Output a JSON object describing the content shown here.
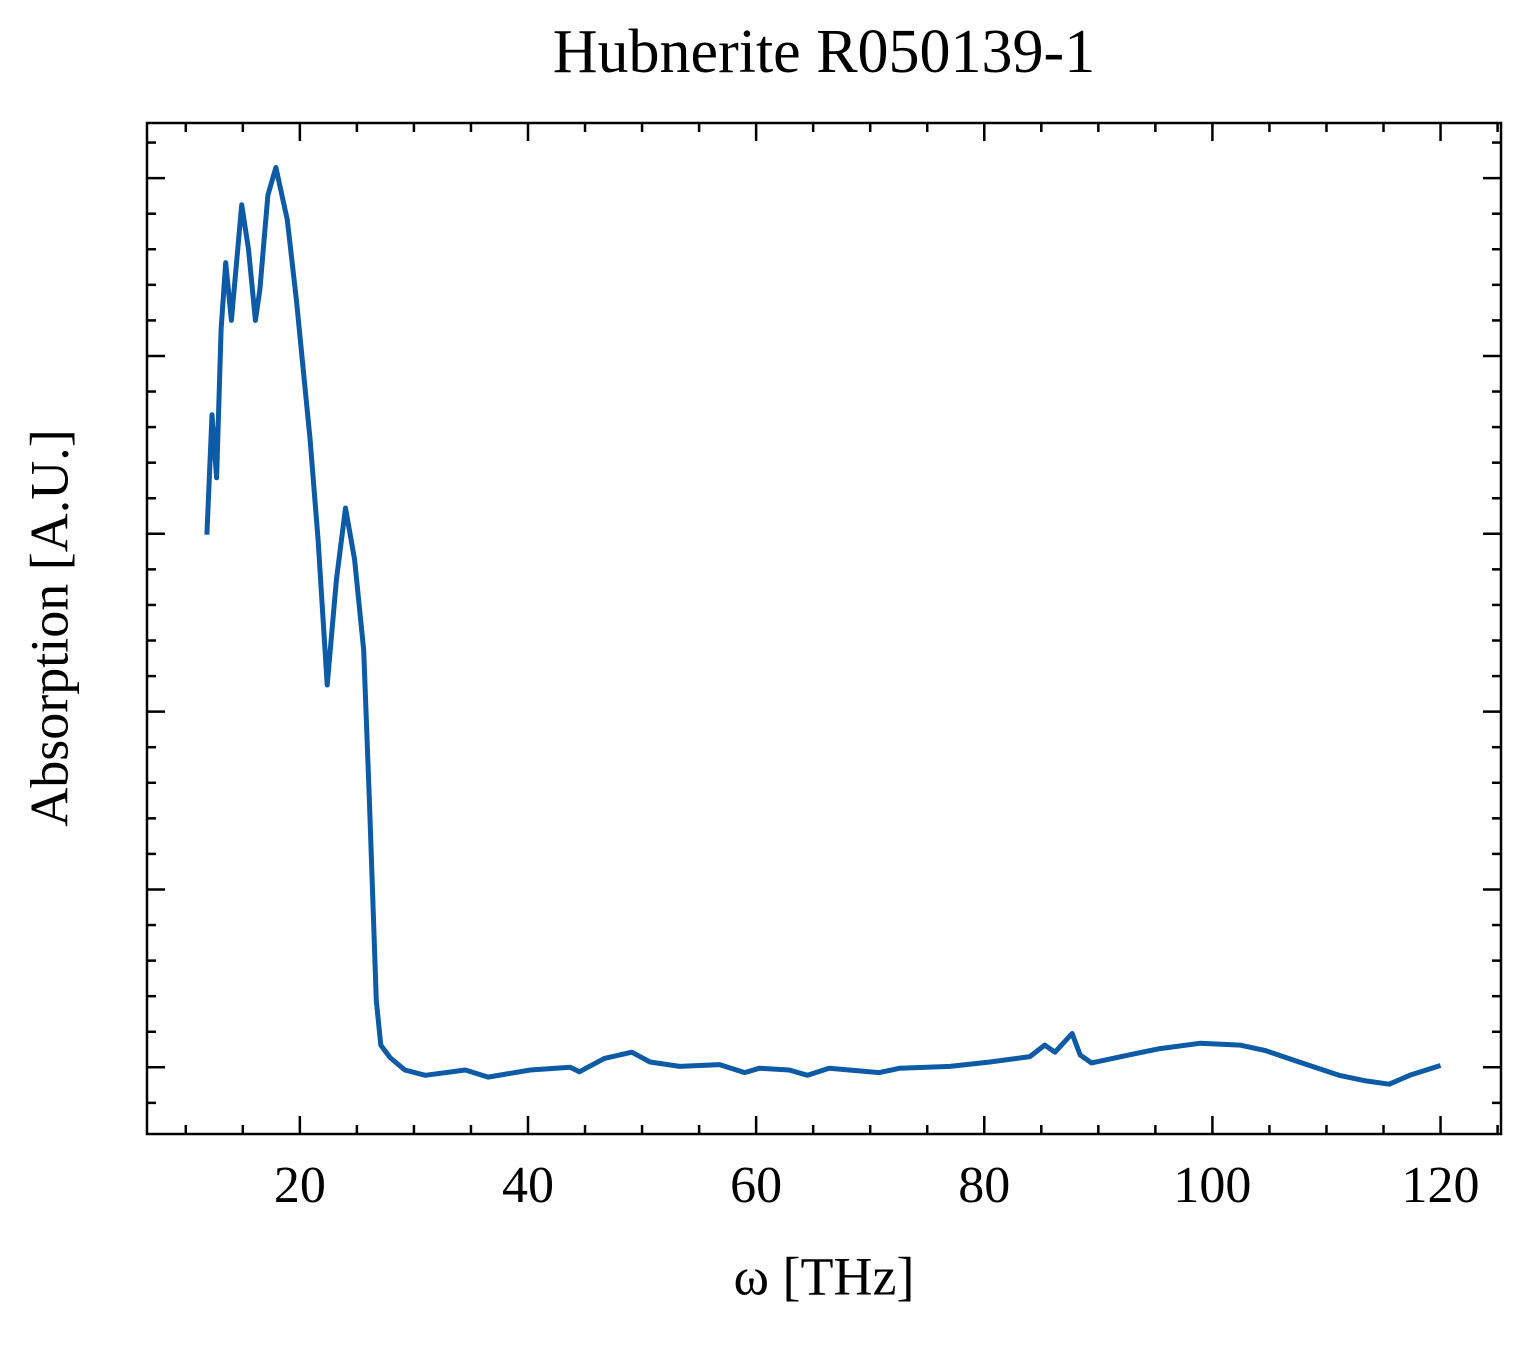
{
  "chart_data": {
    "type": "line",
    "title": "Hubnerite R050139-1",
    "xlabel": "ω [THz]",
    "ylabel": "Absorption [A.U.]",
    "color": "#0d5aa7",
    "x": [
      11.85,
      12.3,
      12.7,
      13.1,
      13.5,
      14.0,
      14.9,
      15.5,
      16.1,
      16.5,
      17.2,
      17.9,
      18.9,
      19.7,
      20.9,
      21.6,
      22.4,
      23.2,
      24.0,
      24.8,
      25.6,
      26.1,
      26.7,
      27.1,
      27.9,
      29.2,
      31.0,
      34.5,
      36.5,
      40.2,
      43.7,
      44.5,
      46.7,
      49.1,
      50.7,
      53.3,
      56.8,
      59.0,
      60.3,
      62.9,
      64.5,
      66.4,
      70.8,
      72.6,
      77.0,
      80.5,
      84.0,
      85.3,
      86.2,
      87.7,
      88.4,
      89.4,
      92.7,
      95.4,
      98.9,
      102.4,
      104.6,
      107.6,
      111.1,
      113.3,
      115.5,
      117.3,
      120.0
    ],
    "values": [
      0.599,
      0.734,
      0.663,
      0.83,
      0.905,
      0.84,
      0.97,
      0.92,
      0.84,
      0.875,
      0.981,
      1.012,
      0.953,
      0.863,
      0.706,
      0.593,
      0.43,
      0.548,
      0.629,
      0.571,
      0.469,
      0.3,
      0.075,
      0.025,
      0.011,
      -0.003,
      -0.009,
      -0.003,
      -0.011,
      -0.003,
      0,
      -0.005,
      0.01,
      0.017,
      0.006,
      0.001,
      0.003,
      -0.006,
      -0.001,
      -0.003,
      -0.009,
      -0.001,
      -0.006,
      -0.001,
      0.001,
      0.006,
      0.012,
      0.025,
      0.017,
      0.038,
      0.014,
      0.005,
      0.014,
      0.021,
      0.027,
      0.025,
      0.019,
      0.006,
      -0.009,
      -0.015,
      -0.019,
      -0.009,
      0.002
    ],
    "xlim": [
      6.6,
      125.3
    ],
    "xticks": [
      20,
      40,
      60,
      80,
      100,
      120
    ],
    "xminorticks": [
      10,
      15,
      25,
      30,
      35,
      45,
      50,
      55,
      65,
      70,
      75,
      85,
      90,
      95,
      105,
      110,
      115,
      125
    ],
    "ylim": [
      -0.075,
      1.062
    ],
    "yticks": [
      0,
      0.2,
      0.4,
      0.6,
      0.8,
      1.0
    ],
    "yminorticks": [
      -0.04,
      0.04,
      0.08,
      0.12,
      0.16,
      0.24,
      0.28,
      0.32,
      0.36,
      0.44,
      0.48,
      0.52,
      0.56,
      0.64,
      0.68,
      0.72,
      0.76,
      0.84,
      0.88,
      0.92,
      0.96,
      1.04
    ]
  }
}
